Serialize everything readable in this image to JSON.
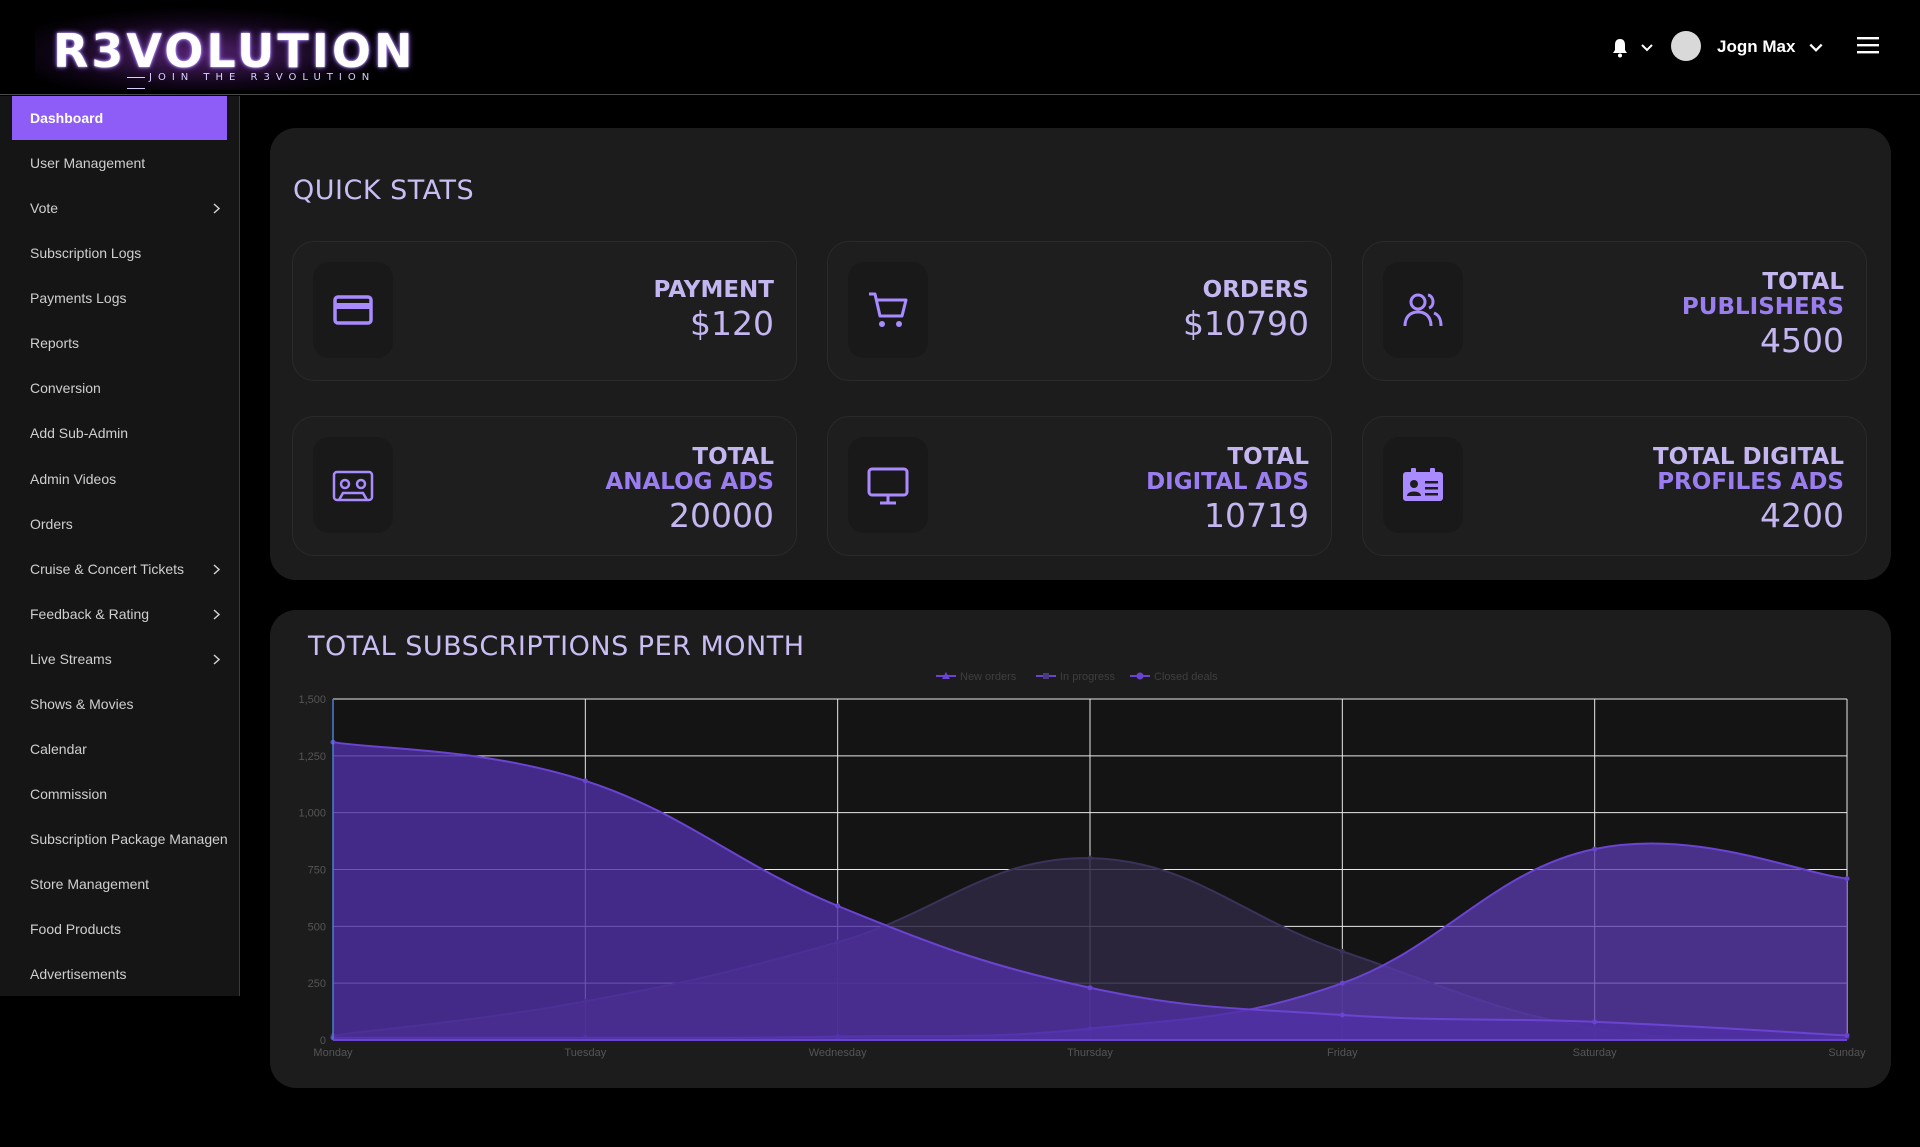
{
  "header": {
    "logo_text": "R3VOLUTION",
    "logo_tagline": "JOIN THE R3VOLUTION",
    "user_name": "Jogn Max"
  },
  "sidebar": {
    "items": [
      {
        "label": "Dashboard",
        "active": true,
        "has_submenu": false
      },
      {
        "label": "User Management",
        "has_submenu": false
      },
      {
        "label": "Vote",
        "has_submenu": true
      },
      {
        "label": "Subscription Logs",
        "has_submenu": false
      },
      {
        "label": "Payments Logs",
        "has_submenu": false
      },
      {
        "label": "Reports",
        "has_submenu": false
      },
      {
        "label": "Conversion",
        "has_submenu": false
      },
      {
        "label": "Add Sub-Admin",
        "has_submenu": false
      },
      {
        "label": "Admin Videos",
        "has_submenu": false
      },
      {
        "label": "Orders",
        "has_submenu": false
      },
      {
        "label": "Cruise & Concert Tickets",
        "has_submenu": true
      },
      {
        "label": "Feedback & Rating",
        "has_submenu": true
      },
      {
        "label": "Live Streams",
        "has_submenu": true
      },
      {
        "label": "Shows & Movies",
        "has_submenu": false
      },
      {
        "label": "Calendar",
        "has_submenu": false
      },
      {
        "label": "Commission",
        "has_submenu": false
      },
      {
        "label": "Subscription Package Managen",
        "has_submenu": false
      },
      {
        "label": "Store Management",
        "has_submenu": false
      },
      {
        "label": "Food Products",
        "has_submenu": false
      },
      {
        "label": "Advertisements",
        "has_submenu": false
      }
    ]
  },
  "quick_stats": {
    "title": "QUICK STATS",
    "cards": [
      {
        "line1": "PAYMENT",
        "line2": "",
        "value": "$120",
        "icon": "credit-card-icon"
      },
      {
        "line1": "ORDERS",
        "line2": "",
        "value": "$10790",
        "icon": "cart-icon"
      },
      {
        "line1": "TOTAL",
        "line2": "PUBLISHERS",
        "value": "4500",
        "icon": "users-icon"
      },
      {
        "line1": "TOTAL",
        "line2": "ANALOG ADS",
        "value": "20000",
        "icon": "cassette-icon"
      },
      {
        "line1": "TOTAL",
        "line2": "DIGITAL ADS",
        "value": "10719",
        "icon": "monitor-icon"
      },
      {
        "line1": "TOTAL DIGITAL",
        "line2": "PROFILES ADS",
        "value": "4200",
        "icon": "id-card-icon"
      }
    ]
  },
  "colors": {
    "accent": "#8e5cf7",
    "background": "#000000",
    "panel": "#1c1c1c",
    "series_new_orders": "#5b3ab0",
    "series_in_progress": "#2e2842",
    "series_closed_deals": "#6a44d0"
  },
  "chart_data": {
    "type": "area",
    "title": "TOTAL SUBSCRIPTIONS PER MONTH",
    "x": [
      "Monday",
      "Tuesday",
      "Wednesday",
      "Thursday",
      "Friday",
      "Saturday",
      "Sunday"
    ],
    "ylim": [
      0,
      1500
    ],
    "yticks": [
      "0",
      "250",
      "500",
      "750",
      "1,000",
      "1,250",
      "1,500"
    ],
    "grid": true,
    "legend_position": "top",
    "series": [
      {
        "name": "New orders",
        "values": [
          20,
          170,
          430,
          800,
          390,
          50,
          10
        ]
      },
      {
        "name": "In progress",
        "values": [
          10,
          10,
          15,
          50,
          250,
          840,
          710
        ]
      },
      {
        "name": "Closed deals",
        "values": [
          1310,
          1140,
          590,
          230,
          110,
          80,
          20
        ]
      }
    ]
  }
}
